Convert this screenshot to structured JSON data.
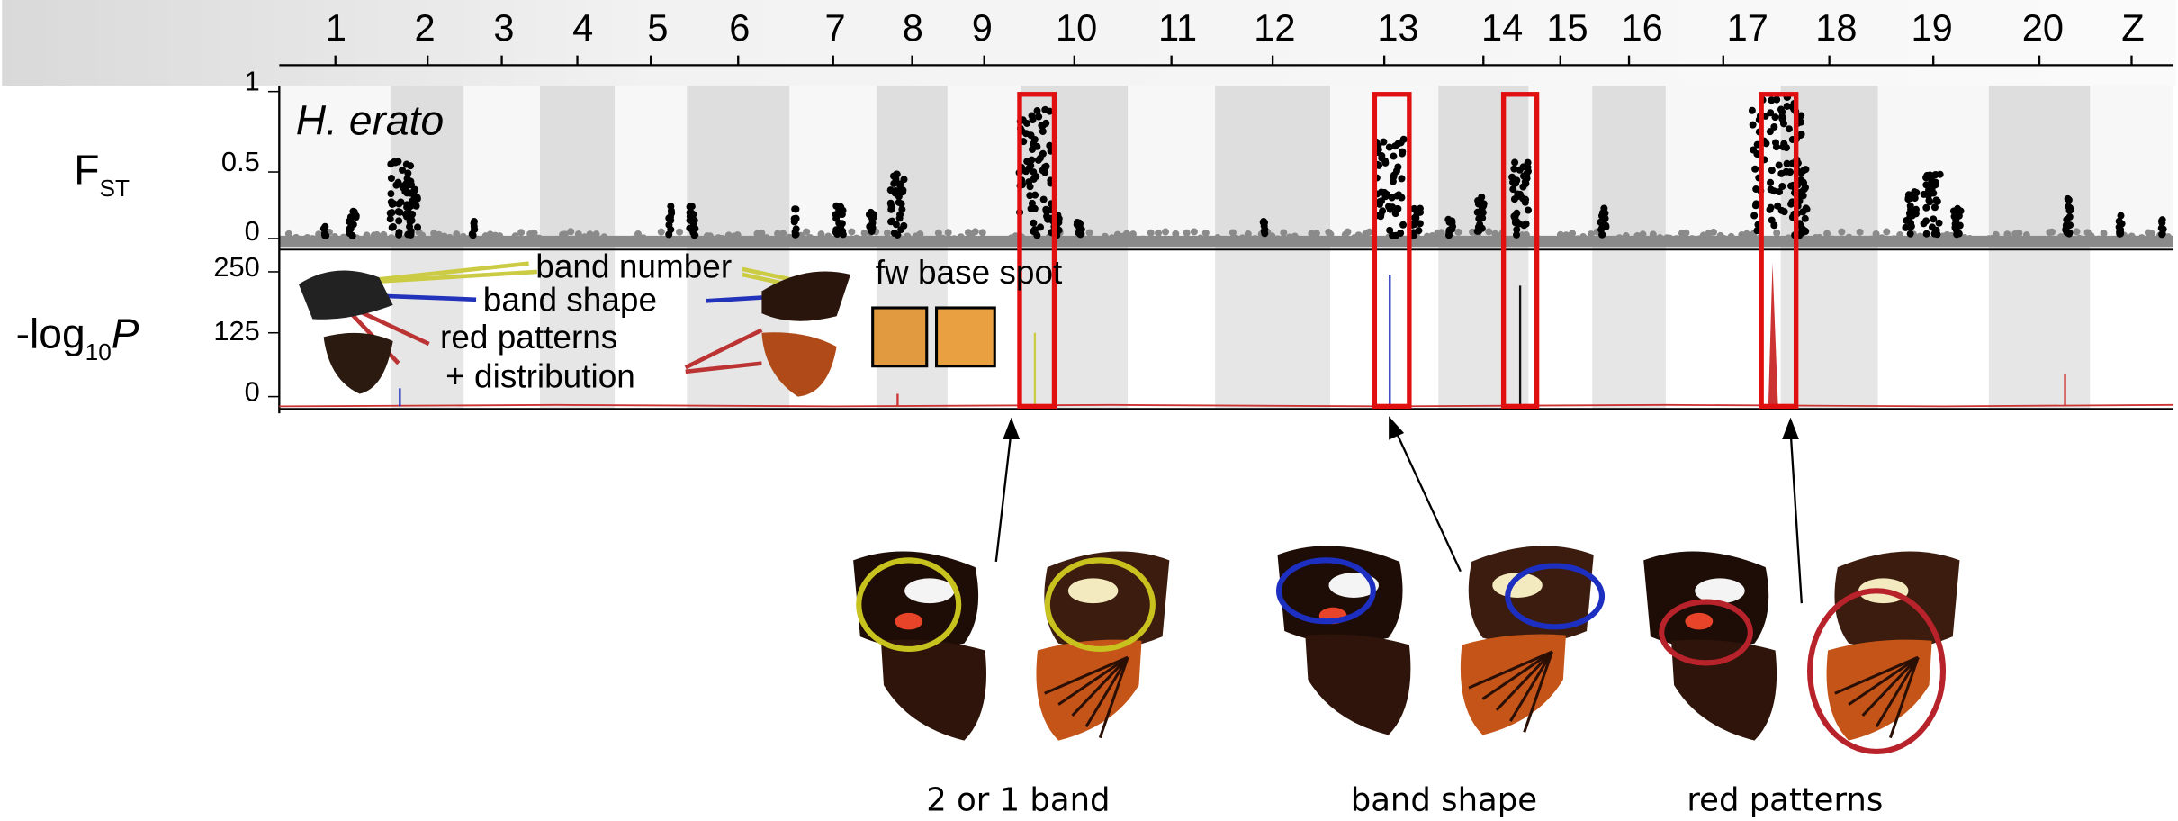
{
  "header": {
    "chromosomes": [
      "1",
      "2",
      "3",
      "4",
      "5",
      "6",
      "7",
      "8",
      "9",
      "10",
      "11",
      "12",
      "13",
      "14",
      "15",
      "16",
      "17",
      "18",
      "19",
      "20",
      "Z"
    ]
  },
  "fst_panel": {
    "label": "F",
    "label_sub": "ST",
    "ticks": [
      "1",
      "0.5",
      "0"
    ],
    "species": "H. erato"
  },
  "p_panel": {
    "label": "-log",
    "label_sub": "10",
    "label_var": "P",
    "ticks": [
      "250",
      "125",
      "0"
    ]
  },
  "legend": {
    "items": [
      "band number",
      "band shape",
      "red patterns",
      "+ distribution"
    ],
    "spot": "fw base spot"
  },
  "captions": [
    "2 or 1 band",
    "band shape",
    "red patterns"
  ]
}
